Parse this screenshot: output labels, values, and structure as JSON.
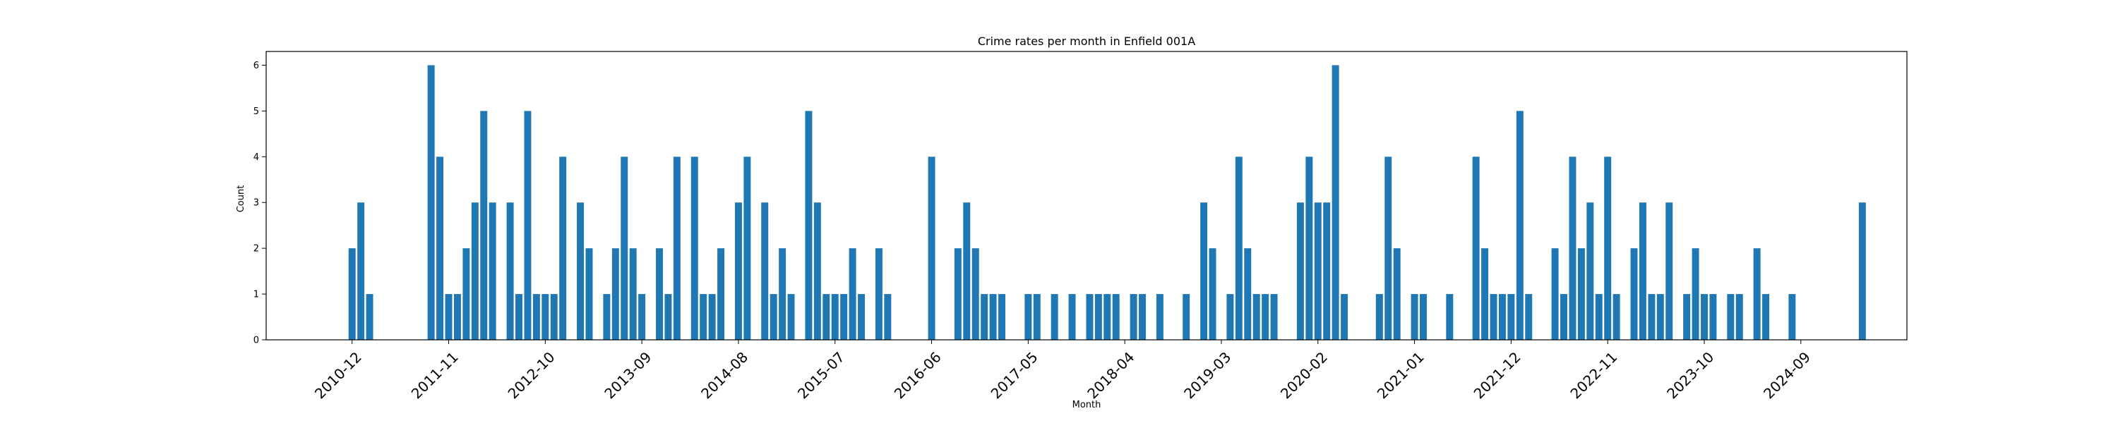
{
  "chart_data": {
    "type": "bar",
    "title": "Crime rates per month in Enfield 001A",
    "xlabel": "Month",
    "ylabel": "Count",
    "ylim": [
      0,
      6.3
    ],
    "yticks": [
      0,
      1,
      2,
      3,
      4,
      5,
      6
    ],
    "bar_color": "#1f77b4",
    "xticks": [
      "2010-12",
      "2011-11",
      "2012-10",
      "2013-09",
      "2014-08",
      "2015-07",
      "2016-06",
      "2017-05",
      "2018-04",
      "2019-03",
      "2020-02",
      "2021-01",
      "2021-12",
      "2022-11",
      "2023-10",
      "2024-09"
    ],
    "data": [
      {
        "month": "2010-12",
        "value": 2
      },
      {
        "month": "2011-01",
        "value": 3
      },
      {
        "month": "2011-02",
        "value": 1
      },
      {
        "month": "2011-09",
        "value": 6
      },
      {
        "month": "2011-10",
        "value": 4
      },
      {
        "month": "2011-11",
        "value": 1
      },
      {
        "month": "2011-12",
        "value": 1
      },
      {
        "month": "2012-01",
        "value": 2
      },
      {
        "month": "2012-02",
        "value": 3
      },
      {
        "month": "2012-03",
        "value": 5
      },
      {
        "month": "2012-04",
        "value": 3
      },
      {
        "month": "2012-06",
        "value": 3
      },
      {
        "month": "2012-07",
        "value": 1
      },
      {
        "month": "2012-08",
        "value": 5
      },
      {
        "month": "2012-09",
        "value": 1
      },
      {
        "month": "2012-10",
        "value": 1
      },
      {
        "month": "2012-11",
        "value": 1
      },
      {
        "month": "2012-12",
        "value": 4
      },
      {
        "month": "2013-02",
        "value": 3
      },
      {
        "month": "2013-03",
        "value": 2
      },
      {
        "month": "2013-05",
        "value": 1
      },
      {
        "month": "2013-06",
        "value": 2
      },
      {
        "month": "2013-07",
        "value": 4
      },
      {
        "month": "2013-08",
        "value": 2
      },
      {
        "month": "2013-09",
        "value": 1
      },
      {
        "month": "2013-11",
        "value": 2
      },
      {
        "month": "2013-12",
        "value": 1
      },
      {
        "month": "2014-01",
        "value": 4
      },
      {
        "month": "2014-03",
        "value": 4
      },
      {
        "month": "2014-04",
        "value": 1
      },
      {
        "month": "2014-05",
        "value": 1
      },
      {
        "month": "2014-06",
        "value": 2
      },
      {
        "month": "2014-08",
        "value": 3
      },
      {
        "month": "2014-09",
        "value": 4
      },
      {
        "month": "2014-11",
        "value": 3
      },
      {
        "month": "2014-12",
        "value": 1
      },
      {
        "month": "2015-01",
        "value": 2
      },
      {
        "month": "2015-02",
        "value": 1
      },
      {
        "month": "2015-04",
        "value": 5
      },
      {
        "month": "2015-05",
        "value": 3
      },
      {
        "month": "2015-06",
        "value": 1
      },
      {
        "month": "2015-07",
        "value": 1
      },
      {
        "month": "2015-08",
        "value": 1
      },
      {
        "month": "2015-09",
        "value": 2
      },
      {
        "month": "2015-10",
        "value": 1
      },
      {
        "month": "2015-12",
        "value": 2
      },
      {
        "month": "2016-01",
        "value": 1
      },
      {
        "month": "2016-06",
        "value": 4
      },
      {
        "month": "2016-09",
        "value": 2
      },
      {
        "month": "2016-10",
        "value": 3
      },
      {
        "month": "2016-11",
        "value": 2
      },
      {
        "month": "2016-12",
        "value": 1
      },
      {
        "month": "2017-01",
        "value": 1
      },
      {
        "month": "2017-02",
        "value": 1
      },
      {
        "month": "2017-05",
        "value": 1
      },
      {
        "month": "2017-06",
        "value": 1
      },
      {
        "month": "2017-08",
        "value": 1
      },
      {
        "month": "2017-10",
        "value": 1
      },
      {
        "month": "2017-12",
        "value": 1
      },
      {
        "month": "2018-01",
        "value": 1
      },
      {
        "month": "2018-02",
        "value": 1
      },
      {
        "month": "2018-03",
        "value": 1
      },
      {
        "month": "2018-05",
        "value": 1
      },
      {
        "month": "2018-06",
        "value": 1
      },
      {
        "month": "2018-08",
        "value": 1
      },
      {
        "month": "2018-11",
        "value": 1
      },
      {
        "month": "2019-01",
        "value": 3
      },
      {
        "month": "2019-02",
        "value": 2
      },
      {
        "month": "2019-04",
        "value": 1
      },
      {
        "month": "2019-05",
        "value": 4
      },
      {
        "month": "2019-06",
        "value": 2
      },
      {
        "month": "2019-07",
        "value": 1
      },
      {
        "month": "2019-08",
        "value": 1
      },
      {
        "month": "2019-09",
        "value": 1
      },
      {
        "month": "2019-12",
        "value": 3
      },
      {
        "month": "2020-01",
        "value": 4
      },
      {
        "month": "2020-02",
        "value": 3
      },
      {
        "month": "2020-03",
        "value": 3
      },
      {
        "month": "2020-04",
        "value": 6
      },
      {
        "month": "2020-05",
        "value": 1
      },
      {
        "month": "2020-09",
        "value": 1
      },
      {
        "month": "2020-10",
        "value": 4
      },
      {
        "month": "2020-11",
        "value": 2
      },
      {
        "month": "2021-01",
        "value": 1
      },
      {
        "month": "2021-02",
        "value": 1
      },
      {
        "month": "2021-05",
        "value": 1
      },
      {
        "month": "2021-08",
        "value": 4
      },
      {
        "month": "2021-09",
        "value": 2
      },
      {
        "month": "2021-10",
        "value": 1
      },
      {
        "month": "2021-11",
        "value": 1
      },
      {
        "month": "2021-12",
        "value": 1
      },
      {
        "month": "2022-01",
        "value": 5
      },
      {
        "month": "2022-02",
        "value": 1
      },
      {
        "month": "2022-05",
        "value": 2
      },
      {
        "month": "2022-06",
        "value": 1
      },
      {
        "month": "2022-07",
        "value": 4
      },
      {
        "month": "2022-08",
        "value": 2
      },
      {
        "month": "2022-09",
        "value": 3
      },
      {
        "month": "2022-10",
        "value": 1
      },
      {
        "month": "2022-11",
        "value": 4
      },
      {
        "month": "2022-12",
        "value": 1
      },
      {
        "month": "2023-02",
        "value": 2
      },
      {
        "month": "2023-03",
        "value": 3
      },
      {
        "month": "2023-04",
        "value": 1
      },
      {
        "month": "2023-05",
        "value": 1
      },
      {
        "month": "2023-06",
        "value": 3
      },
      {
        "month": "2023-08",
        "value": 1
      },
      {
        "month": "2023-09",
        "value": 2
      },
      {
        "month": "2023-10",
        "value": 1
      },
      {
        "month": "2023-11",
        "value": 1
      },
      {
        "month": "2024-01",
        "value": 1
      },
      {
        "month": "2024-02",
        "value": 1
      },
      {
        "month": "2024-04",
        "value": 2
      },
      {
        "month": "2024-05",
        "value": 1
      },
      {
        "month": "2024-08",
        "value": 1
      },
      {
        "month": "2025-04",
        "value": 3
      }
    ]
  }
}
